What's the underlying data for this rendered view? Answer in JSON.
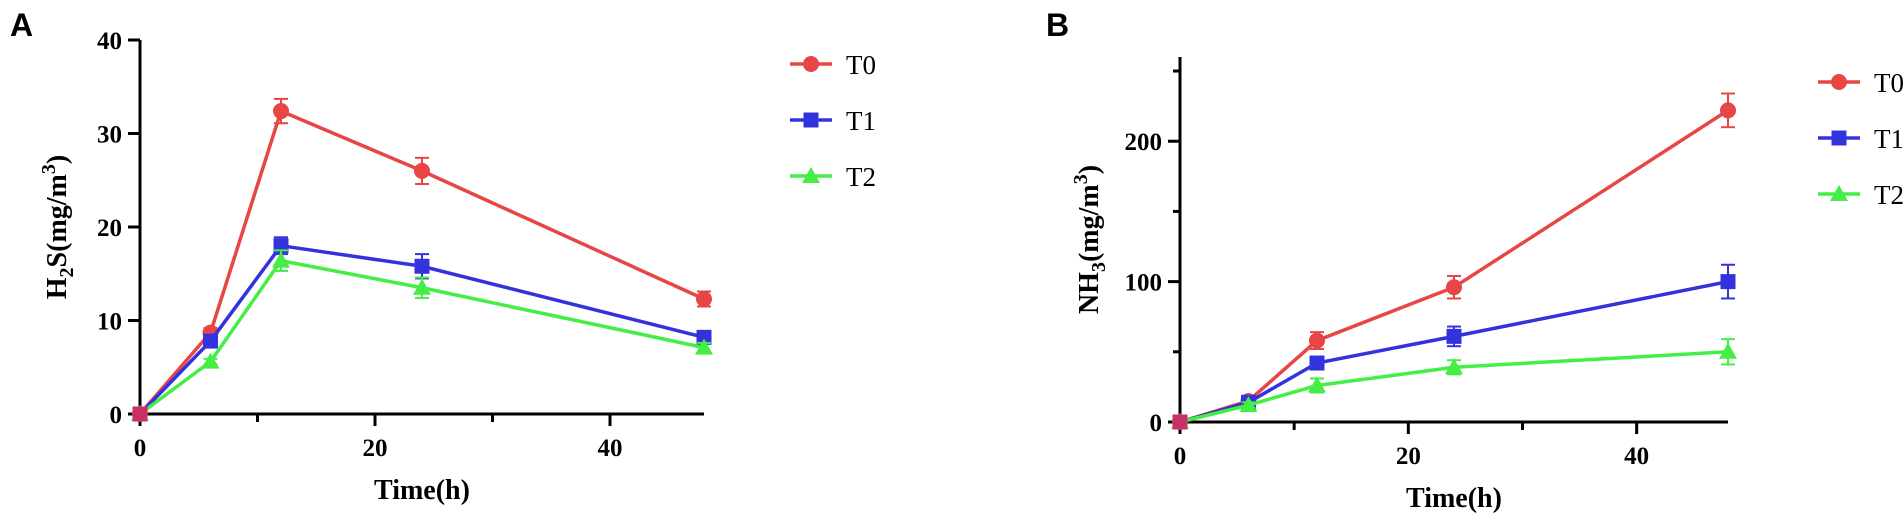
{
  "chart_data": [
    {
      "panel": "A",
      "type": "line",
      "xlabel": "Time(h)",
      "ylabel": {
        "base": "H",
        "sub": "2",
        "mid": "S(mg/m",
        "sup": "3",
        "end": ")"
      },
      "xlim": [
        0,
        48
      ],
      "ylim": [
        0,
        40
      ],
      "xticks": [
        0,
        20,
        40
      ],
      "xminor": [
        10,
        30
      ],
      "yticks": [
        0,
        10,
        20,
        30,
        40
      ],
      "grid": false,
      "legend": "top-right",
      "x": [
        0,
        6,
        12,
        24,
        48
      ],
      "series": [
        {
          "name": "T0",
          "color": "#e84545",
          "marker": "circle",
          "values": [
            0,
            8.7,
            32.4,
            26.0,
            12.3
          ],
          "errors": [
            0,
            0.5,
            1.3,
            1.4,
            0.8
          ]
        },
        {
          "name": "T1",
          "color": "#3333dd",
          "marker": "square",
          "values": [
            0,
            7.8,
            18.0,
            15.8,
            8.2
          ],
          "errors": [
            0,
            0.4,
            0.9,
            1.3,
            0.6
          ]
        },
        {
          "name": "T2",
          "color": "#44ee44",
          "marker": "triangle",
          "values": [
            0,
            5.6,
            16.4,
            13.5,
            7.1
          ],
          "errors": [
            0,
            0.3,
            1.1,
            1.1,
            0.5
          ]
        }
      ]
    },
    {
      "panel": "B",
      "type": "line",
      "xlabel": "Time(h)",
      "ylabel": {
        "base": "NH",
        "sub": "3",
        "mid": "(mg/m",
        "sup": "3",
        "end": ")"
      },
      "xlim": [
        0,
        48
      ],
      "ylim": [
        0,
        260
      ],
      "xticks": [
        0,
        20,
        40
      ],
      "xminor": [
        10,
        30
      ],
      "yticks": [
        0,
        100,
        200
      ],
      "yminor": [
        50,
        150,
        250
      ],
      "grid": false,
      "legend": "top-right",
      "x": [
        0,
        6,
        12,
        24,
        48
      ],
      "series": [
        {
          "name": "T0",
          "color": "#e84545",
          "marker": "circle",
          "values": [
            0,
            15,
            58,
            96,
            222
          ],
          "errors": [
            0,
            2,
            6,
            8,
            12
          ]
        },
        {
          "name": "T1",
          "color": "#3333dd",
          "marker": "square",
          "values": [
            0,
            14,
            42,
            61,
            100
          ],
          "errors": [
            0,
            2,
            4,
            7,
            12
          ]
        },
        {
          "name": "T2",
          "color": "#44ee44",
          "marker": "triangle",
          "values": [
            0,
            12,
            26,
            39,
            50
          ],
          "errors": [
            0,
            2,
            5,
            5,
            9
          ]
        }
      ]
    }
  ]
}
